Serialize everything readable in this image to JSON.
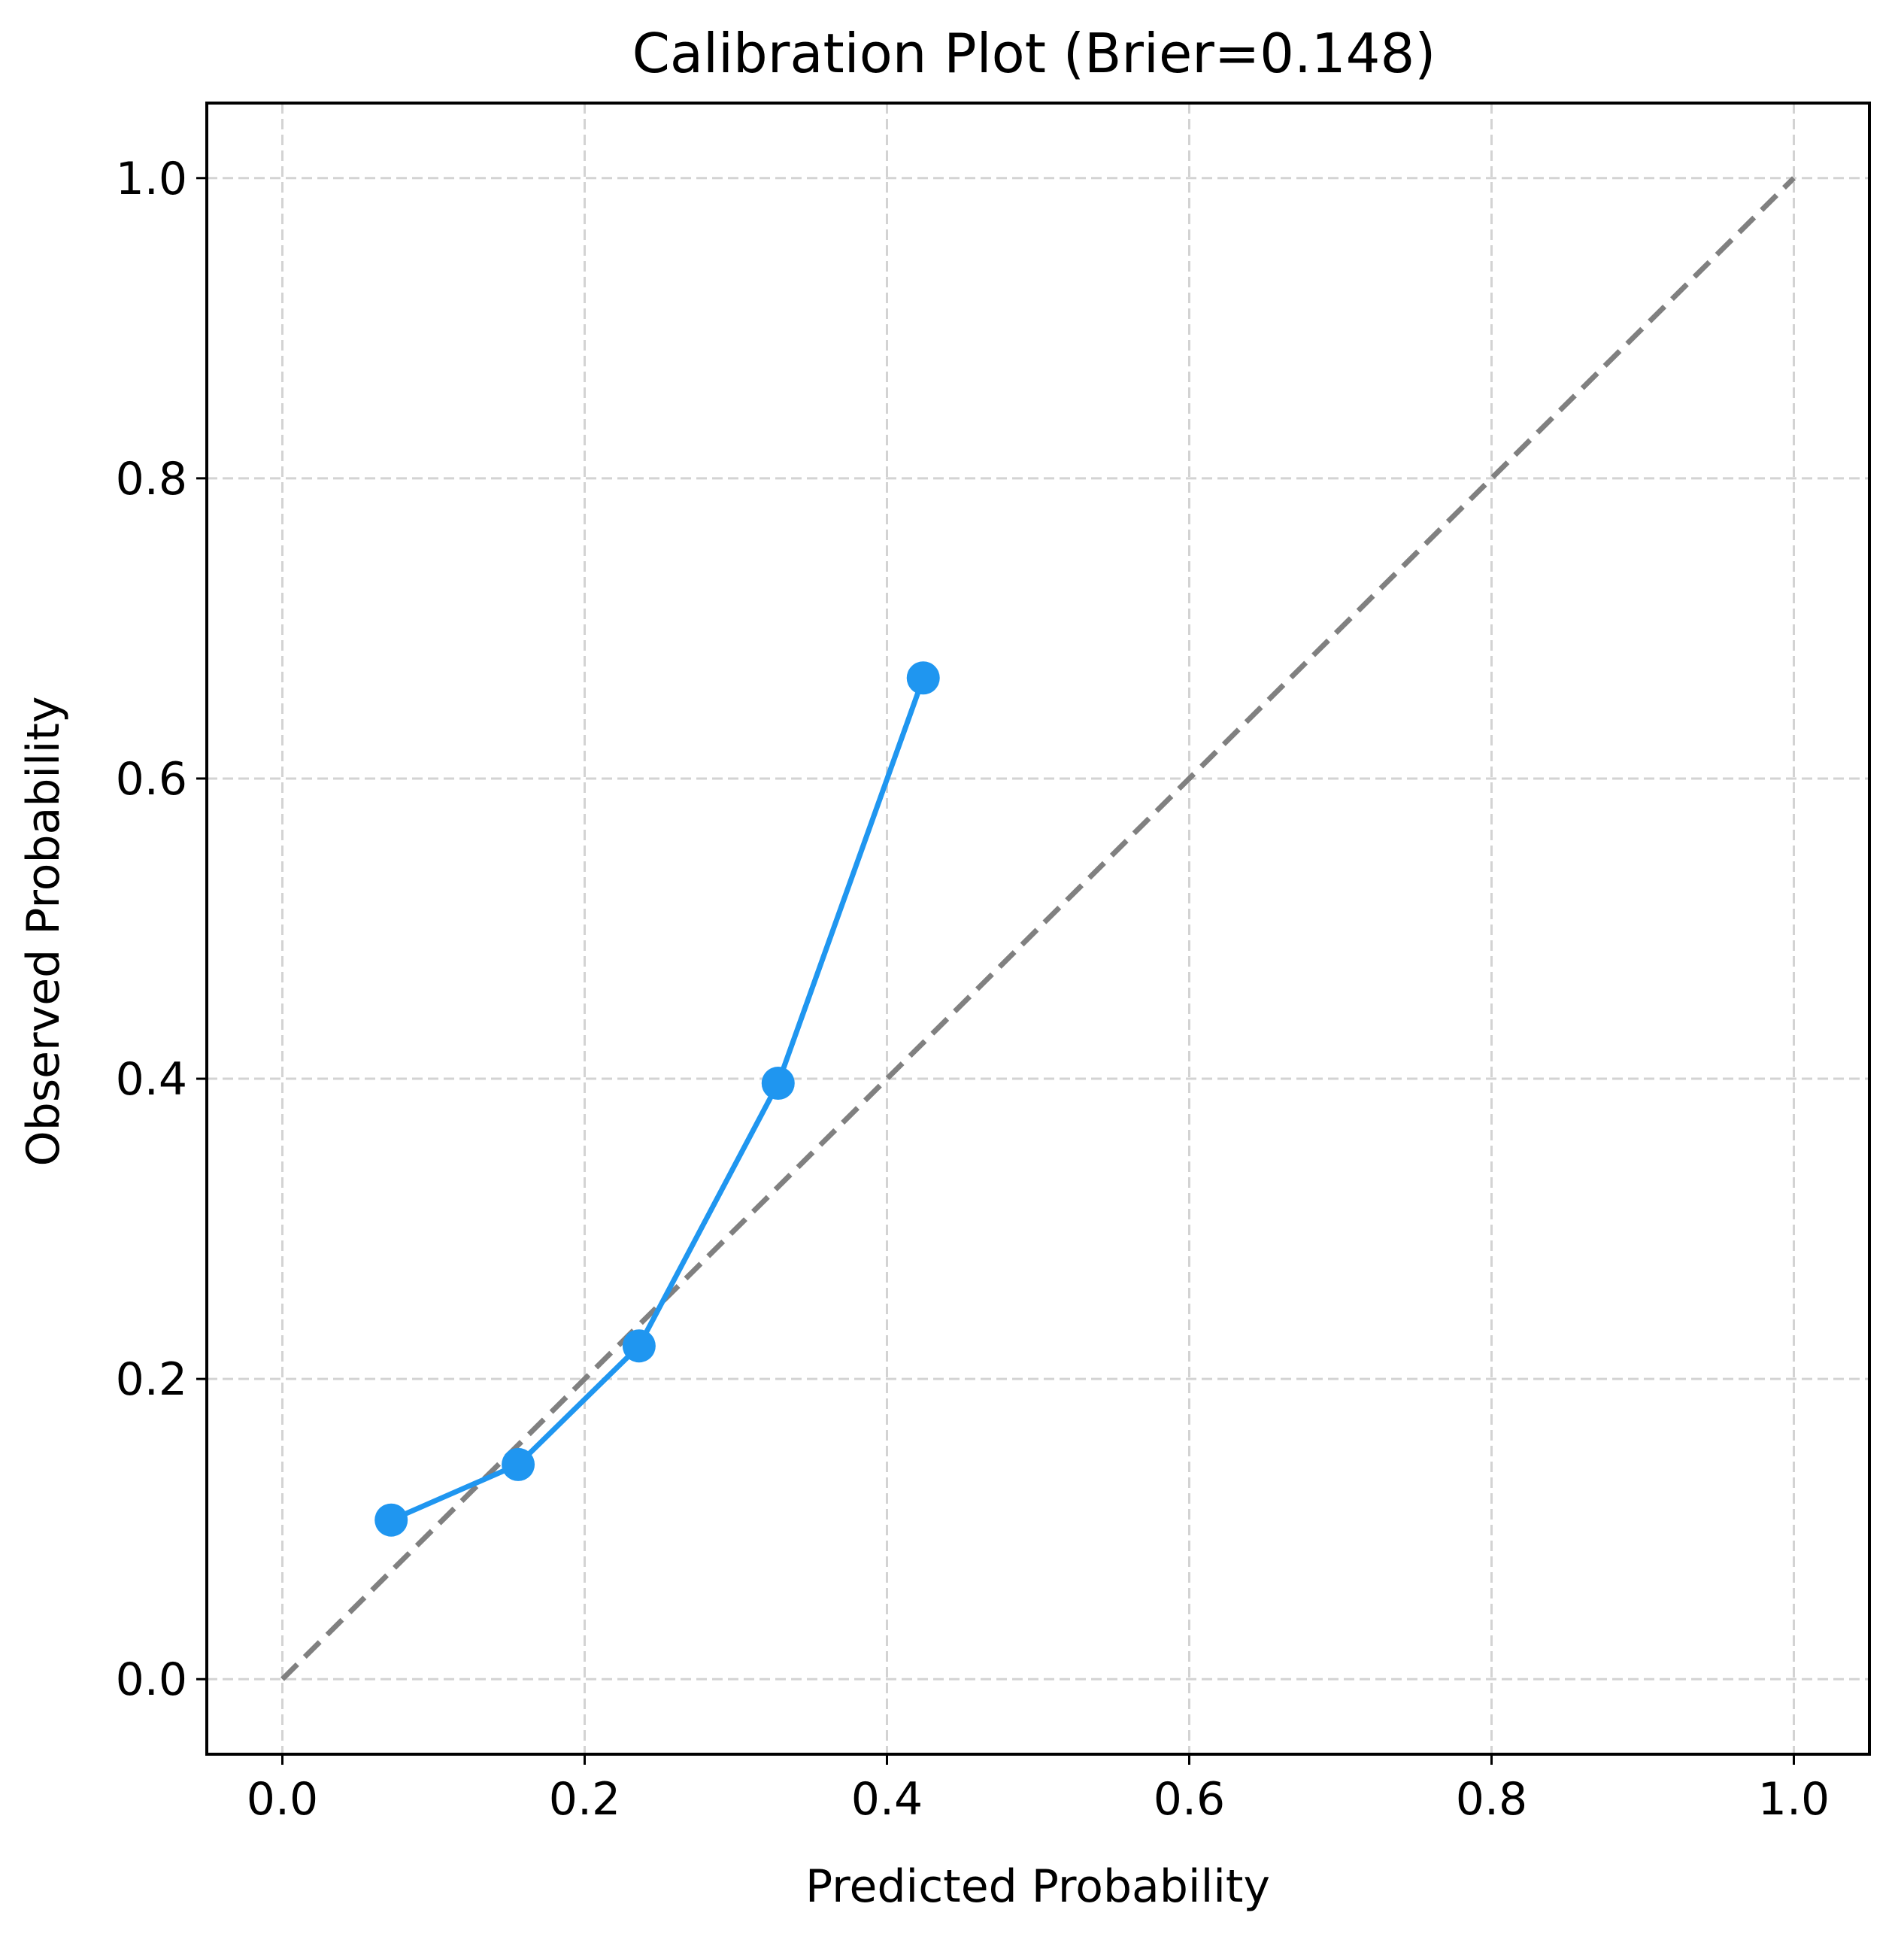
{
  "chart_data": {
    "type": "line",
    "title": "Calibration Plot (Brier=0.148)",
    "xlabel": "Predicted Probability",
    "ylabel": "Observed Probability",
    "xlim": [
      -0.05,
      1.05
    ],
    "ylim": [
      -0.05,
      1.05
    ],
    "xticks": [
      "0.0",
      "0.2",
      "0.4",
      "0.6",
      "0.8",
      "1.0"
    ],
    "yticks": [
      "0.0",
      "0.2",
      "0.4",
      "0.6",
      "0.8",
      "1.0"
    ],
    "grid": true,
    "grid_style": "dashed",
    "series": [
      {
        "x": [
          0.072,
          0.156,
          0.236,
          0.328,
          0.424
        ],
        "y": [
          0.106,
          0.143,
          0.222,
          0.397,
          0.667
        ],
        "color": "#1f96f0",
        "marker": "circle",
        "line_style": "solid"
      }
    ],
    "reference_line": {
      "x": [
        0,
        1
      ],
      "y": [
        0,
        1
      ],
      "color": "#808080",
      "line_style": "dashed"
    }
  }
}
